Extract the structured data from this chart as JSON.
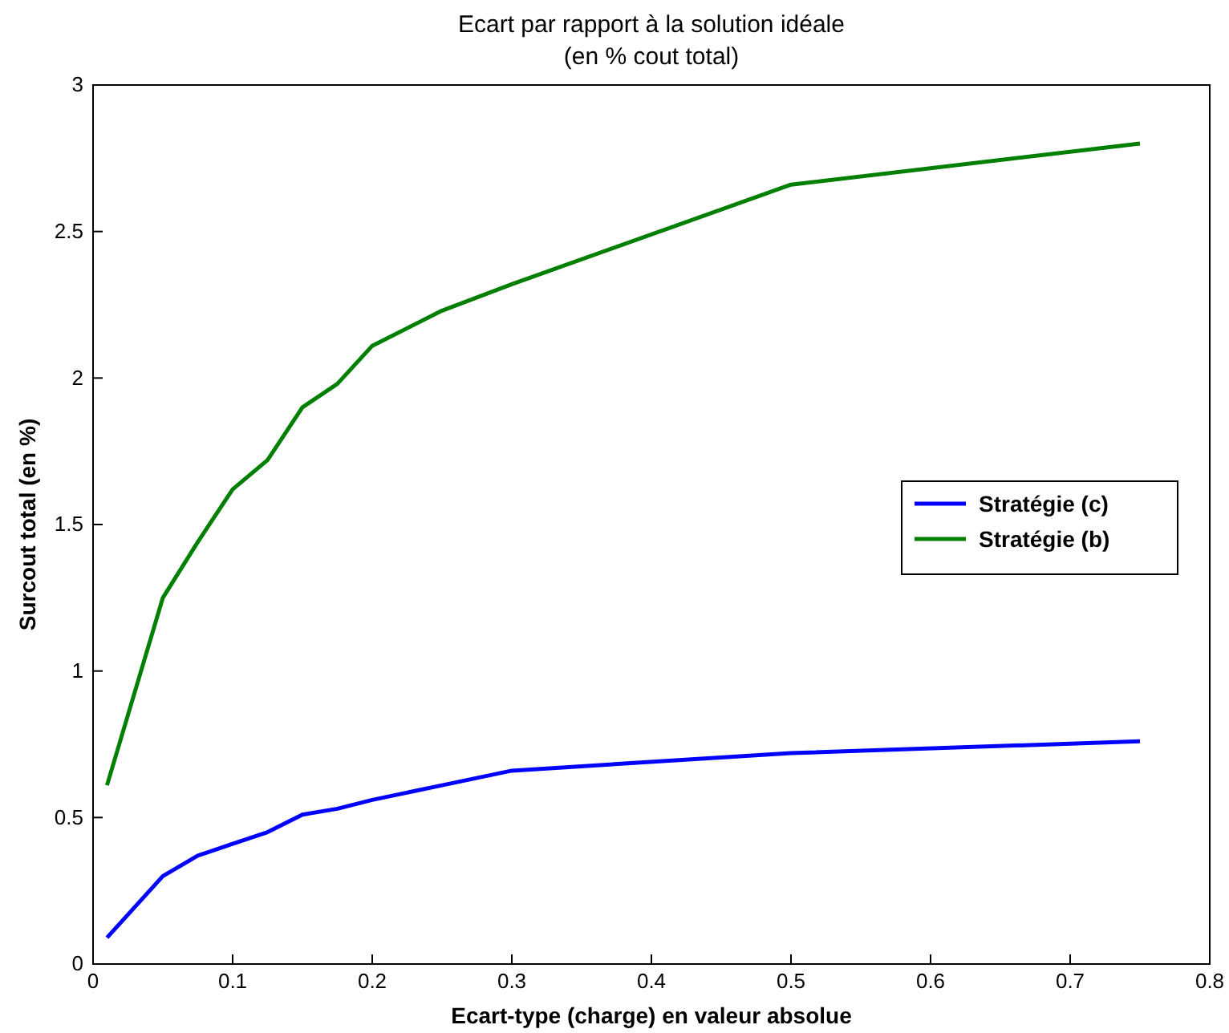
{
  "chart_data": {
    "type": "line",
    "title": "Ecart par rapport à la solution idéale",
    "subtitle": "(en % cout total)",
    "xlabel": "Ecart-type (charge) en valeur absolue",
    "ylabel": "Surcout total (en %)",
    "x": [
      0.01,
      0.05,
      0.075,
      0.1,
      0.125,
      0.15,
      0.175,
      0.2,
      0.25,
      0.3,
      0.5,
      0.75
    ],
    "series": [
      {
        "name": "Stratégie (c)",
        "color": "#0000ff",
        "values": [
          0.09,
          0.3,
          0.37,
          0.41,
          0.45,
          0.51,
          0.53,
          0.56,
          0.61,
          0.66,
          0.72,
          0.76
        ]
      },
      {
        "name": "Stratégie (b)",
        "color": "#007f00",
        "values": [
          0.61,
          1.25,
          1.44,
          1.62,
          1.72,
          1.9,
          1.98,
          2.11,
          2.23,
          2.32,
          2.66,
          2.8
        ]
      }
    ],
    "xlim": [
      0,
      0.8
    ],
    "xticks": [
      0,
      0.1,
      0.2,
      0.3,
      0.4,
      0.5,
      0.6,
      0.7,
      0.8
    ],
    "ylim": [
      0,
      3
    ],
    "yticks": [
      0,
      0.5,
      1,
      1.5,
      2,
      2.5,
      3
    ],
    "grid": false,
    "legend": "right",
    "marker": "none",
    "line_style": "solid"
  }
}
